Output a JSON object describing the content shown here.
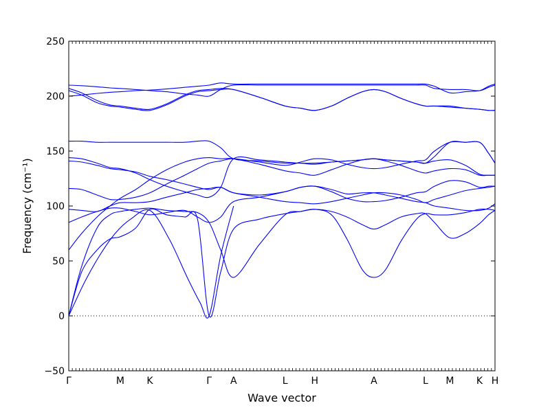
{
  "chart_data": {
    "type": "line",
    "title": "",
    "xlabel": "Wave vector",
    "ylabel": "Frequency (cm⁻¹)",
    "ylim": [
      -50,
      250
    ],
    "xlim": [
      0,
      16.55
    ],
    "yticks": [
      -50,
      0,
      50,
      100,
      150,
      200,
      250
    ],
    "high_symmetry_points": [
      {
        "label": "Γ",
        "x": 0
      },
      {
        "label": "M",
        "x": 2.0
      },
      {
        "label": "K",
        "x": 3.15
      },
      {
        "label": "Γ",
        "x": 5.45
      },
      {
        "label": "A",
        "x": 6.4
      },
      {
        "label": "L",
        "x": 8.4
      },
      {
        "label": "H",
        "x": 9.55
      },
      {
        "label": "A",
        "x": 11.85
      },
      {
        "label": "L",
        "x": 13.85
      },
      {
        "label": "M",
        "x": 14.8
      },
      {
        "label": "K",
        "x": 15.95
      },
      {
        "label": "H",
        "x": 16.55
      }
    ],
    "zero_line": true,
    "line_color": "#0000ff",
    "series": [
      {
        "x": [
          0,
          0.5,
          1.1,
          1.6,
          2.0,
          2.6,
          3.15,
          3.8,
          4.5,
          5.0,
          5.45,
          5.9,
          6.4,
          7.4,
          8.4,
          9.0,
          9.55,
          10.2,
          10.8,
          11.4,
          11.85,
          12.3,
          12.9,
          13.5,
          13.85,
          14.2,
          14.8,
          15.4,
          15.95,
          16.3,
          16.55
        ],
        "y": [
          0,
          45,
          80,
          92,
          95,
          97,
          98,
          96,
          95,
          94,
          85,
          60,
          35,
          65,
          92,
          95,
          97,
          92,
          70,
          42,
          35,
          42,
          68,
          88,
          93,
          92,
          92,
          94,
          97,
          97,
          96
        ]
      },
      {
        "x": [
          0,
          0.5,
          1.1,
          1.6,
          2.0,
          2.6,
          3.15,
          3.8,
          4.5,
          5.0,
          5.45,
          5.9,
          6.4,
          7.4,
          8.4,
          9.0,
          9.55,
          10.2,
          10.8,
          11.4,
          11.85,
          12.3,
          12.9,
          13.5,
          13.85,
          14.2,
          14.8,
          15.4,
          15.95,
          16.3,
          16.55
        ],
        "y": [
          0,
          40,
          60,
          70,
          72,
          80,
          97,
          92,
          90,
          88,
          0,
          40,
          79,
          88,
          93,
          95,
          97,
          95,
          90,
          83,
          79,
          83,
          90,
          93,
          93,
          85,
          71,
          75,
          84,
          92,
          96
        ]
      },
      {
        "x": [
          0,
          0.6,
          1.2,
          1.8,
          2.4,
          3.15,
          3.9,
          4.6,
          5.1,
          5.45,
          5.9,
          6.4
        ],
        "y": [
          0,
          30,
          55,
          75,
          88,
          96,
          70,
          35,
          12,
          0,
          55,
          100
        ]
      },
      {
        "x": [
          0,
          0.5,
          1.1,
          1.6,
          2.0,
          2.6,
          3.15,
          3.8,
          4.5,
          5.0,
          5.45,
          5.9,
          6.4,
          7.4,
          8.4,
          9.0,
          9.55,
          10.2,
          10.8,
          11.4,
          11.85,
          12.3,
          12.9,
          13.5,
          13.85,
          14.2,
          14.8,
          15.4,
          15.95,
          16.3,
          16.55
        ],
        "y": [
          60,
          75,
          90,
          100,
          107,
          115,
          124,
          133,
          140,
          143,
          144,
          143,
          143,
          138,
          132,
          130,
          128,
          133,
          138,
          142,
          143,
          141,
          137,
          132,
          130,
          132,
          134,
          133,
          128,
          128,
          128
        ]
      },
      {
        "x": [
          0,
          0.5,
          1.1,
          1.6,
          2.0,
          2.6,
          3.15,
          3.8,
          4.5,
          5.0,
          5.45,
          5.9,
          6.4,
          7.4,
          8.4,
          9.0,
          9.55,
          10.2,
          10.8,
          11.4,
          11.85,
          12.3,
          12.9,
          13.5,
          13.85,
          14.2,
          14.8,
          15.4,
          15.95,
          16.3,
          16.55
        ],
        "y": [
          85,
          90,
          95,
          98,
          98,
          95,
          92,
          94,
          96,
          90,
          85,
          90,
          104,
          108,
          113,
          117,
          118,
          113,
          107,
          104,
          104,
          105,
          108,
          112,
          113,
          118,
          123,
          122,
          117,
          118,
          118
        ]
      },
      {
        "x": [
          0,
          0.5,
          1.1,
          1.6,
          2.0,
          2.6,
          3.15,
          3.8,
          4.5,
          5.0,
          5.45,
          5.9,
          6.4,
          7.4,
          8.4,
          9.0,
          9.55,
          10.2,
          10.8,
          11.4,
          11.85,
          12.3,
          12.9,
          13.5,
          13.85,
          14.2,
          14.8,
          15.4,
          15.95,
          16.3,
          16.55
        ],
        "y": [
          97,
          96,
          95,
          100,
          103,
          103,
          104,
          108,
          112,
          115,
          116,
          117,
          112,
          110,
          113,
          117,
          118,
          115,
          111,
          112,
          112,
          110,
          107,
          104,
          103,
          100,
          98,
          96,
          96,
          98,
          102
        ]
      },
      {
        "x": [
          0,
          0.5,
          1.1,
          1.6,
          2.0,
          2.6,
          3.15,
          3.8,
          4.5,
          5.0,
          5.45,
          5.9,
          6.4,
          7.4,
          8.4,
          9.0,
          9.55,
          10.2,
          10.8,
          11.4,
          11.85,
          12.3,
          12.9,
          13.5,
          13.85,
          14.2,
          14.8,
          15.4,
          15.95,
          16.3,
          16.55
        ],
        "y": [
          116,
          115,
          110,
          106,
          106,
          108,
          112,
          120,
          128,
          134,
          139,
          141,
          143,
          140,
          137,
          140,
          143,
          142,
          138,
          135,
          134,
          135,
          138,
          141,
          142,
          150,
          158,
          158,
          158,
          148,
          139
        ]
      },
      {
        "x": [
          0,
          0.5,
          1.1,
          1.6,
          2.0,
          2.6,
          3.15,
          3.8,
          4.5,
          5.0,
          5.45,
          5.9,
          6.4,
          7.4,
          8.4,
          9.0,
          9.55,
          10.2,
          10.8,
          11.4,
          11.85,
          12.3,
          12.9,
          13.5,
          13.85,
          14.2,
          14.8,
          15.4,
          15.95,
          16.3,
          16.55
        ],
        "y": [
          141,
          140,
          137,
          134,
          133,
          131,
          127,
          124,
          120,
          117,
          115,
          117,
          112,
          108,
          104,
          103,
          102,
          104,
          107,
          110,
          112,
          112,
          110,
          106,
          103,
          106,
          110,
          114,
          116,
          117,
          118
        ]
      },
      {
        "x": [
          0,
          0.5,
          1.1,
          1.6,
          2.0,
          2.6,
          3.15,
          3.8,
          4.5,
          5.0,
          5.45,
          5.9,
          6.4,
          7.4,
          8.4,
          9.0,
          9.55,
          10.2,
          10.8,
          11.4,
          11.85,
          12.3,
          12.9,
          13.5,
          13.85,
          14.2,
          14.8,
          15.4,
          15.95,
          16.3,
          16.55
        ],
        "y": [
          144,
          143,
          139,
          135,
          134,
          130,
          124,
          118,
          113,
          110,
          108,
          117,
          143,
          142,
          140,
          139,
          139,
          140,
          141,
          142,
          143,
          142,
          141,
          140,
          139,
          145,
          158,
          158,
          158,
          148,
          139
        ]
      },
      {
        "x": [
          0,
          0.5,
          1.1,
          1.6,
          2.0,
          2.6,
          3.15,
          3.8,
          4.5,
          5.0,
          5.45,
          5.9,
          6.4,
          7.4,
          8.4,
          9.0,
          9.55,
          10.2,
          10.8,
          11.4,
          11.85,
          12.3,
          12.9,
          13.5,
          13.85,
          14.2,
          14.8,
          15.4,
          15.95,
          16.3,
          16.55
        ],
        "y": [
          159,
          159,
          158,
          158,
          158,
          158,
          158,
          158,
          158,
          159,
          159,
          153,
          143,
          141,
          139,
          139,
          138,
          140,
          141,
          142,
          143,
          142,
          141,
          140,
          139,
          141,
          142,
          137,
          129,
          128,
          128
        ]
      },
      {
        "x": [
          0,
          0.5,
          1.1,
          1.6,
          2.0,
          2.6,
          3.15,
          3.8,
          4.5,
          5.0,
          5.45,
          5.9,
          6.4,
          7.4,
          8.4,
          9.0,
          9.55,
          10.2,
          10.8,
          11.4,
          11.85,
          12.3,
          12.9,
          13.5,
          13.85,
          14.2,
          14.8,
          15.4,
          15.95,
          16.3,
          16.55
        ],
        "y": [
          205,
          201,
          194,
          191,
          190,
          188,
          187,
          192,
          200,
          204,
          205,
          206,
          206,
          199,
          191,
          189,
          187,
          191,
          198,
          204,
          206,
          204,
          198,
          193,
          191,
          191,
          191,
          189,
          188,
          187,
          187
        ]
      },
      {
        "x": [
          0,
          0.5,
          1.1,
          1.6,
          2.0,
          2.6,
          3.15,
          3.8,
          4.5,
          5.0,
          5.45,
          5.9,
          6.4,
          7.4,
          8.4,
          9.0,
          9.55,
          10.2,
          10.8,
          11.4,
          11.85,
          12.3,
          12.9,
          13.5,
          13.85,
          14.2,
          14.8,
          15.4,
          15.95,
          16.3,
          16.55
        ],
        "y": [
          207,
          203,
          196,
          192,
          191,
          189,
          188,
          193,
          201,
          205,
          206,
          207,
          206,
          199,
          191,
          189,
          187,
          191,
          198,
          204,
          206,
          204,
          198,
          193,
          191,
          191,
          190,
          189,
          188,
          187,
          187
        ]
      },
      {
        "x": [
          0,
          0.5,
          1.1,
          1.6,
          2.0,
          2.6,
          3.15,
          3.8,
          4.5,
          5.0,
          5.45,
          5.9,
          6.4,
          7.4,
          8.4,
          9.0,
          9.55,
          10.2,
          10.8,
          11.4,
          11.85,
          12.3,
          12.9,
          13.5,
          13.85,
          14.2,
          14.8,
          15.4,
          15.95,
          16.3,
          16.55
        ],
        "y": [
          210,
          209.5,
          208.5,
          207.5,
          207,
          206,
          205,
          204,
          202,
          201,
          200,
          206,
          210,
          210,
          210,
          210,
          210,
          210,
          210,
          210,
          210,
          210,
          210,
          210,
          210,
          207,
          206,
          206,
          205,
          208,
          210
        ]
      },
      {
        "x": [
          0,
          0.5,
          1.1,
          1.6,
          2.0,
          2.6,
          3.15,
          3.8,
          4.5,
          5.0,
          5.45,
          5.9,
          6.4,
          7.4,
          8.4,
          9.0,
          9.55,
          10.2,
          10.8,
          11.4,
          11.85,
          12.3,
          12.9,
          13.5,
          13.85,
          14.2,
          14.8,
          15.4,
          15.95,
          16.3,
          16.55
        ],
        "y": [
          200,
          201,
          202.5,
          203.5,
          204,
          205,
          205.5,
          206.5,
          208,
          209,
          210,
          212,
          211,
          211,
          211,
          211,
          211,
          211,
          211,
          211,
          211,
          211,
          211,
          211,
          211,
          209,
          203,
          204,
          205,
          209,
          211
        ]
      }
    ]
  }
}
